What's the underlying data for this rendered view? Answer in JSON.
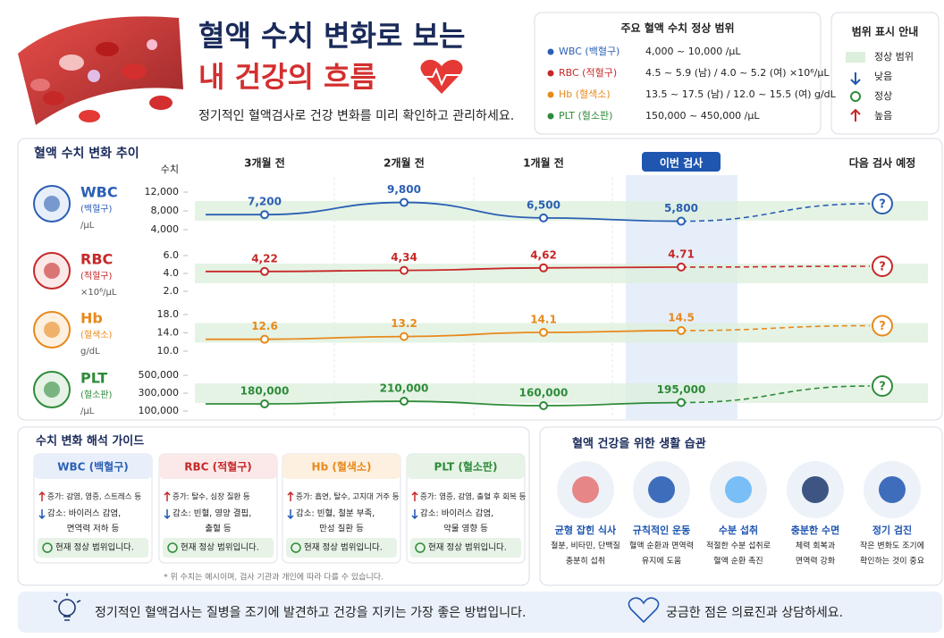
{
  "header": {
    "title_line1": "혈액 수치 변화로 보는",
    "title_line2": "내 건강의 흐름",
    "subtitle": "정기적인 혈액검사로 건강 변화를 미리 확인하고 관리하세요."
  },
  "normal_ranges": {
    "title": "주요 혈액 수치 정상 범위",
    "rows": [
      {
        "name": "WBC (백혈구)",
        "range": "4,000 ~ 10,000 /μL"
      },
      {
        "name": "RBC (적혈구)",
        "range": "4.5 ~ 5.9 (남) / 4.0 ~ 5.2 (여) ×10⁶/μL"
      },
      {
        "name": "Hb (혈색소)",
        "range": "13.5 ~ 17.5 (남) / 12.0 ~ 15.5 (여) g/dL"
      },
      {
        "name": "PLT (혈소판)",
        "range": "150,000 ~ 450,000 /μL"
      }
    ]
  },
  "range_legend": {
    "title": "범위 표시 안내",
    "items": [
      "정상 범위",
      "낮음",
      "정상",
      "높음"
    ]
  },
  "trend": {
    "title": "혈액 수치 변화 추이",
    "axis_label": "수치",
    "categories": [
      "3개월 전",
      "2개월 전",
      "1개월 전",
      "이번 검사",
      "다음 검사 예정"
    ]
  },
  "chart_data": [
    {
      "type": "line",
      "title": "WBC",
      "subtitle": "(백혈구)",
      "unit": "/μL",
      "color": "#2b5fb4",
      "values": [
        7200,
        9800,
        6500,
        5800,
        null
      ],
      "value_labels": [
        "7,200",
        "9,800",
        "6,500",
        "5,800",
        null
      ],
      "ylim": [
        4000,
        12000
      ],
      "yticks": [
        {
          "value": 12000,
          "label": "12,000"
        },
        {
          "value": 8000,
          "label": "8,000"
        },
        {
          "value": 4000,
          "label": "4,000"
        }
      ],
      "forecast_label": "?"
    },
    {
      "type": "line",
      "title": "RBC",
      "subtitle": "(적혈구)",
      "unit": "×10⁶/μL",
      "color": "#c62828",
      "values": [
        4.22,
        4.34,
        4.62,
        4.71,
        null
      ],
      "value_labels": [
        "4,22",
        "4,34",
        "4,62",
        "4.71",
        null
      ],
      "ylim": [
        2,
        6
      ],
      "yticks": [
        {
          "value": 6,
          "label": "6.0"
        },
        {
          "value": 4,
          "label": "4.0"
        },
        {
          "value": 2,
          "label": "2.0"
        }
      ],
      "forecast_label": "?"
    },
    {
      "type": "line",
      "title": "Hb",
      "subtitle": "(혈색소)",
      "unit": "g/dL",
      "color": "#e8891c",
      "values": [
        12.6,
        13.2,
        14.1,
        14.5,
        null
      ],
      "ylim": [
        10,
        18
      ],
      "yticks": [
        {
          "value": 18,
          "label": "18.0"
        },
        {
          "value": 14,
          "label": "14.0"
        },
        {
          "value": 10,
          "label": "10.0"
        }
      ],
      "forecast_label": "?"
    },
    {
      "type": "line",
      "title": "PLT",
      "subtitle": "(혈소판)",
      "unit": "/μL",
      "color": "#2e8b3a",
      "values": [
        180000,
        210000,
        160000,
        195000,
        null
      ],
      "value_labels": [
        "180,000",
        "210,000",
        "160,000",
        "195,000",
        null
      ],
      "ylim": [
        100000,
        500000
      ],
      "yticks": [
        {
          "value": 500000,
          "label": "500,000"
        },
        {
          "value": 300000,
          "label": "300,000"
        },
        {
          "value": 100000,
          "label": "100,000"
        }
      ],
      "forecast_label": "?"
    }
  ],
  "guide": {
    "title": "수치 변화 해석 가이드",
    "cards": [
      {
        "name": "WBC (백혈구)",
        "up": "증가: 감염, 염증, 스트레스 등",
        "down": [
          "감소: 바이러스 감염,",
          "면역력 저하 등"
        ],
        "status": "현재 정상 범위입니다."
      },
      {
        "name": "RBC (적혈구)",
        "up": "증가: 탈수, 심장 질환 등",
        "down": [
          "감소: 빈혈, 영양 결핍,",
          "출혈 등"
        ],
        "status": "현재 정상 범위입니다."
      },
      {
        "name": "Hb (혈색소)",
        "up": "증가: 흡연, 탈수, 고지대 거주 등",
        "down": [
          "감소: 빈혈, 철분 부족,",
          "만성 질환 등"
        ],
        "status": "현재 정상 범위입니다."
      },
      {
        "name": "PLT (혈소판)",
        "up": "증가: 염증, 감염, 출혈 후 회복 등",
        "down": [
          "감소: 바이러스 감염,",
          "약물 영향 등"
        ],
        "status": "현재 정상 범위입니다."
      }
    ],
    "note": "* 위 수치는 예시이며, 검사 기관과 개인에 따라 다를 수 있습니다."
  },
  "habits": {
    "title": "혈액 건강을 위한 생활 습관",
    "items": [
      {
        "name": "균형 잡힌 식사",
        "desc": [
          "철분, 비타민, 단백질",
          "충분히 섭취"
        ]
      },
      {
        "name": "규칙적인 운동",
        "desc": [
          "혈액 순환과 면역력",
          "유지에 도움"
        ]
      },
      {
        "name": "수분 섭취",
        "desc": [
          "적절한 수분 섭취로",
          "혈액 순환 촉진"
        ]
      },
      {
        "name": "충분한 수면",
        "desc": [
          "체력 회복과",
          "면역력 강화"
        ]
      },
      {
        "name": "정기 검진",
        "desc": [
          "작은 변화도 조기에",
          "확인하는 것이 중요"
        ]
      }
    ]
  },
  "footer": {
    "left": "정기적인 혈액검사는 질병을 조기에 발견하고 건강을 지키는 가장 좋은 방법입니다.",
    "right": "궁금한 점은 의료진과 상담하세요."
  }
}
